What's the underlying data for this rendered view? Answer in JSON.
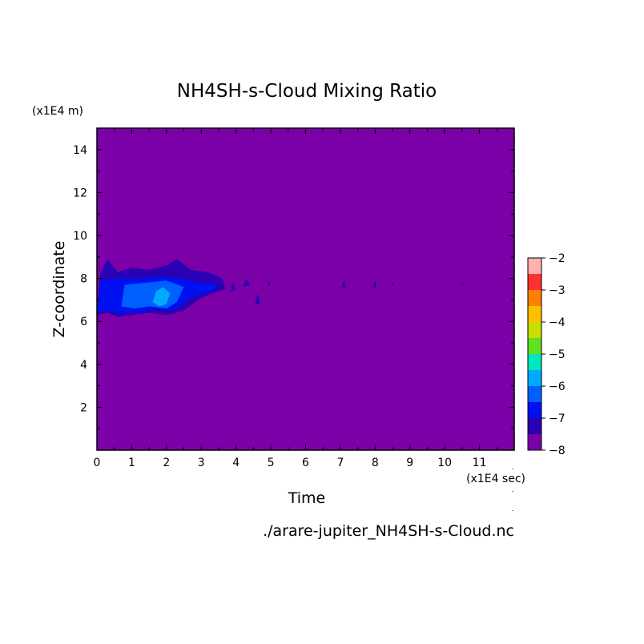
{
  "chart_data": {
    "type": "heatmap",
    "title": "NH4SH-s-Cloud Mixing Ratio",
    "xlabel": "Time",
    "ylabel": "Z-coordinate",
    "x_unit": "(x1E4 sec)",
    "y_unit": "(x1E4 m)",
    "xlim": [
      0,
      12
    ],
    "ylim": [
      0,
      15
    ],
    "xticks": [
      0,
      1,
      2,
      3,
      4,
      5,
      6,
      7,
      8,
      9,
      10,
      11
    ],
    "yticks": [
      2,
      4,
      6,
      8,
      10,
      12,
      14
    ],
    "background_level": -8,
    "colorbar": {
      "ticks": [
        -2,
        -3,
        -4,
        -5,
        -6,
        -7,
        -8
      ],
      "levels": [
        {
          "min": -8.0,
          "max": -7.5,
          "color": "#7b00a8"
        },
        {
          "min": -7.5,
          "max": -7.0,
          "color": "#2a00b4"
        },
        {
          "min": -7.0,
          "max": -6.5,
          "color": "#0010f0"
        },
        {
          "min": -6.5,
          "max": -6.0,
          "color": "#0060ff"
        },
        {
          "min": -6.0,
          "max": -5.5,
          "color": "#00aaff"
        },
        {
          "min": -5.5,
          "max": -5.0,
          "color": "#00e8c0"
        },
        {
          "min": -5.0,
          "max": -4.5,
          "color": "#60e020"
        },
        {
          "min": -4.5,
          "max": -4.0,
          "color": "#c8e000"
        },
        {
          "min": -4.0,
          "max": -3.5,
          "color": "#ffc000"
        },
        {
          "min": -3.5,
          "max": -3.0,
          "color": "#ff8000"
        },
        {
          "min": -3.0,
          "max": -2.5,
          "color": "#ff3030"
        },
        {
          "min": -2.5,
          "max": -2.0,
          "color": "#ffb0b0"
        }
      ]
    },
    "regions": [
      {
        "level": -7.5,
        "outline": [
          [
            0,
            6.3
          ],
          [
            0.1,
            8.2
          ],
          [
            0.3,
            8.9
          ],
          [
            0.6,
            8.3
          ],
          [
            1.0,
            8.5
          ],
          [
            1.5,
            8.4
          ],
          [
            2.0,
            8.6
          ],
          [
            2.3,
            8.9
          ],
          [
            2.7,
            8.4
          ],
          [
            3.2,
            8.3
          ],
          [
            3.6,
            8.0
          ],
          [
            3.7,
            7.5
          ],
          [
            3.3,
            7.3
          ],
          [
            2.9,
            7.0
          ],
          [
            2.5,
            6.5
          ],
          [
            2.0,
            6.3
          ],
          [
            1.5,
            6.4
          ],
          [
            1.0,
            6.3
          ],
          [
            0.6,
            6.2
          ],
          [
            0.3,
            6.4
          ]
        ]
      },
      {
        "level": -7.0,
        "outline": [
          [
            0,
            6.5
          ],
          [
            0.1,
            7.9
          ],
          [
            0.6,
            8.0
          ],
          [
            1.2,
            8.0
          ],
          [
            1.8,
            8.1
          ],
          [
            2.4,
            8.0
          ],
          [
            3.0,
            7.8
          ],
          [
            3.5,
            7.7
          ],
          [
            3.3,
            7.4
          ],
          [
            2.7,
            7.1
          ],
          [
            2.2,
            6.5
          ],
          [
            1.7,
            6.6
          ],
          [
            1.2,
            6.4
          ],
          [
            0.7,
            6.4
          ],
          [
            0.3,
            6.5
          ]
        ]
      },
      {
        "level": -6.5,
        "outline": [
          [
            0.7,
            6.7
          ],
          [
            0.8,
            7.7
          ],
          [
            1.4,
            7.8
          ],
          [
            2.0,
            7.9
          ],
          [
            2.5,
            7.6
          ],
          [
            2.3,
            6.9
          ],
          [
            2.0,
            6.6
          ],
          [
            1.5,
            6.7
          ],
          [
            1.1,
            6.6
          ]
        ]
      },
      {
        "level": -6.0,
        "outline": [
          [
            1.6,
            6.9
          ],
          [
            1.7,
            7.4
          ],
          [
            1.9,
            7.6
          ],
          [
            2.1,
            7.3
          ],
          [
            2.0,
            6.8
          ],
          [
            1.8,
            6.7
          ]
        ]
      },
      {
        "level": -7.0,
        "outline": [
          [
            0.55,
            6.3
          ],
          [
            0.6,
            7.1
          ],
          [
            0.75,
            6.4
          ]
        ]
      },
      {
        "level": -7.5,
        "outline": [
          [
            3.85,
            7.4
          ],
          [
            3.9,
            7.8
          ],
          [
            4.0,
            7.5
          ]
        ]
      },
      {
        "level": -7.5,
        "outline": [
          [
            4.2,
            7.6
          ],
          [
            4.3,
            8.0
          ],
          [
            4.4,
            7.7
          ]
        ]
      },
      {
        "level": -7.5,
        "outline": [
          [
            4.55,
            6.8
          ],
          [
            4.62,
            7.3
          ],
          [
            4.7,
            6.8
          ]
        ]
      },
      {
        "level": -7.5,
        "outline": [
          [
            4.9,
            7.7
          ],
          [
            4.95,
            7.9
          ],
          [
            5.0,
            7.7
          ]
        ]
      },
      {
        "level": -7.5,
        "outline": [
          [
            7.05,
            7.6
          ],
          [
            7.1,
            7.9
          ],
          [
            7.15,
            7.6
          ]
        ]
      },
      {
        "level": -7.5,
        "outline": [
          [
            7.95,
            7.6
          ],
          [
            8.0,
            7.9
          ],
          [
            8.05,
            7.6
          ]
        ]
      },
      {
        "level": -7.5,
        "outline": [
          [
            8.45,
            7.7
          ],
          [
            8.5,
            7.8
          ],
          [
            8.55,
            7.7
          ]
        ]
      },
      {
        "level": -7.5,
        "outline": [
          [
            10.45,
            7.7
          ],
          [
            10.5,
            7.8
          ],
          [
            10.55,
            7.7
          ]
        ]
      }
    ]
  },
  "footer": {
    "filename": "./arare-jupiter_NH4SH-s-Cloud.nc"
  }
}
